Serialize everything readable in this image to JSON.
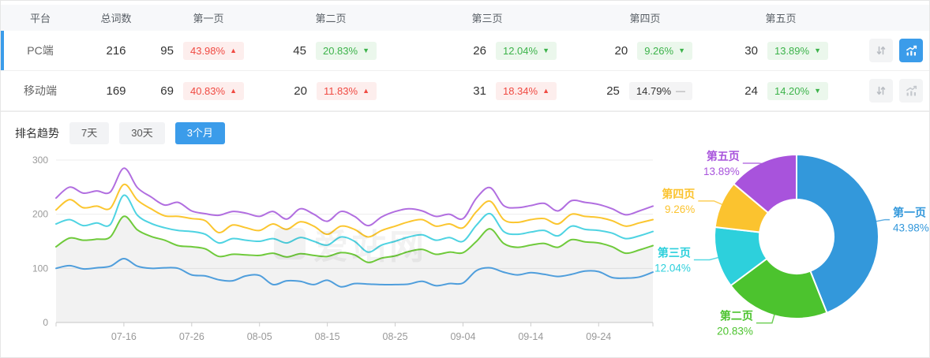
{
  "table": {
    "columns": [
      "平台",
      "总词数",
      "第一页",
      "第二页",
      "第三页",
      "第四页",
      "第五页"
    ],
    "action_icons": {
      "sort": "sort-arrows-icon",
      "trend": "trend-chart-icon"
    },
    "rows": [
      {
        "platform": "PC端",
        "total": "216",
        "selected": true,
        "trend_active": true,
        "pages": [
          {
            "count": "95",
            "pct": "43.98%",
            "dir": "up",
            "tone": "red"
          },
          {
            "count": "45",
            "pct": "20.83%",
            "dir": "down",
            "tone": "green"
          },
          {
            "count": "26",
            "pct": "12.04%",
            "dir": "down",
            "tone": "green"
          },
          {
            "count": "20",
            "pct": "9.26%",
            "dir": "down",
            "tone": "green"
          },
          {
            "count": "30",
            "pct": "13.89%",
            "dir": "down",
            "tone": "green"
          }
        ]
      },
      {
        "platform": "移动端",
        "total": "169",
        "selected": false,
        "trend_active": false,
        "pages": [
          {
            "count": "69",
            "pct": "40.83%",
            "dir": "up",
            "tone": "red"
          },
          {
            "count": "20",
            "pct": "11.83%",
            "dir": "up",
            "tone": "red"
          },
          {
            "count": "31",
            "pct": "18.34%",
            "dir": "up",
            "tone": "red"
          },
          {
            "count": "25",
            "pct": "14.79%",
            "dir": "flat",
            "tone": "gray"
          },
          {
            "count": "24",
            "pct": "14.20%",
            "dir": "down",
            "tone": "green"
          }
        ]
      }
    ]
  },
  "trend": {
    "title": "排名趋势",
    "tabs": [
      {
        "label": "7天",
        "active": false
      },
      {
        "label": "30天",
        "active": false
      },
      {
        "label": "3个月",
        "active": true
      }
    ]
  },
  "watermark": "爱站网",
  "colors": {
    "accent": "#3b9cea",
    "badge_red_text": "#f04a42",
    "badge_red_bg": "#fdeeed",
    "badge_green_text": "#3cb34a",
    "badge_green_bg": "#ebf7ec",
    "badge_gray_bg": "#f4f4f5",
    "axis_text": "#999999",
    "grid_line": "#ededed",
    "axis_line": "#cccccc"
  },
  "chart_data": [
    {
      "type": "line",
      "title": "排名趋势 3个月 (PC端, 页面排名词数累计)",
      "stacked_cumulative": true,
      "x_start": "07-06",
      "x_interval_days": 2,
      "points": 45,
      "x_tick_labels": [
        "07-16",
        "07-26",
        "08-05",
        "08-15",
        "08-25",
        "09-04",
        "09-14",
        "09-24"
      ],
      "x_tick_indices": [
        5,
        10,
        15,
        20,
        25,
        30,
        35,
        40
      ],
      "ylim": [
        0,
        300
      ],
      "y_ticks": [
        0,
        100,
        200,
        300
      ],
      "grid": true,
      "legend": false,
      "area_fill": "rgba(0,0,0,0.05)",
      "series": [
        {
          "name": "第一页",
          "color": "#54a7e8",
          "values": [
            100,
            105,
            99,
            101,
            104,
            118,
            104,
            100,
            101,
            100,
            88,
            86,
            79,
            77,
            86,
            87,
            70,
            77,
            76,
            70,
            78,
            66,
            72,
            71,
            70,
            70,
            71,
            76,
            68,
            72,
            73,
            96,
            101,
            93,
            88,
            92,
            89,
            85,
            89,
            95,
            94,
            83,
            82,
            84,
            93
          ]
        },
        {
          "name": "第二页",
          "color": "#6fca3b",
          "area": true,
          "values": [
            140,
            156,
            152,
            154,
            158,
            196,
            171,
            159,
            152,
            142,
            140,
            136,
            122,
            126,
            125,
            124,
            128,
            121,
            127,
            124,
            122,
            129,
            125,
            111,
            119,
            123,
            131,
            135,
            126,
            130,
            129,
            150,
            173,
            146,
            139,
            143,
            146,
            139,
            153,
            149,
            147,
            140,
            128,
            134,
            142
          ]
        },
        {
          "name": "第三页",
          "color": "#4ed3e2",
          "values": [
            182,
            190,
            179,
            184,
            181,
            235,
            198,
            183,
            175,
            170,
            168,
            163,
            147,
            155,
            152,
            150,
            155,
            147,
            157,
            150,
            143,
            158,
            150,
            130,
            143,
            150,
            158,
            162,
            152,
            157,
            150,
            180,
            201,
            168,
            163,
            167,
            170,
            160,
            178,
            172,
            170,
            165,
            155,
            160,
            168
          ]
        },
        {
          "name": "第四页",
          "color": "#fbc62f",
          "values": [
            208,
            227,
            212,
            215,
            211,
            255,
            226,
            210,
            197,
            196,
            192,
            188,
            166,
            180,
            175,
            170,
            182,
            172,
            186,
            178,
            163,
            178,
            172,
            158,
            170,
            178,
            186,
            190,
            178,
            182,
            175,
            205,
            224,
            190,
            185,
            190,
            192,
            182,
            200,
            196,
            194,
            188,
            178,
            184,
            190
          ]
        },
        {
          "name": "第五页",
          "color": "#b16ee0",
          "values": [
            230,
            250,
            239,
            243,
            241,
            285,
            249,
            232,
            217,
            222,
            206,
            201,
            198,
            205,
            202,
            196,
            205,
            191,
            210,
            200,
            187,
            205,
            196,
            179,
            195,
            205,
            210,
            206,
            196,
            200,
            192,
            230,
            249,
            216,
            212,
            216,
            220,
            206,
            225,
            222,
            218,
            210,
            199,
            206,
            215
          ]
        }
      ]
    },
    {
      "type": "pie",
      "donut": true,
      "title": "PC端 页面分布",
      "slices": [
        {
          "label": "第一页",
          "value": 43.98,
          "display": "43.98%",
          "color": "#3398db"
        },
        {
          "label": "第二页",
          "value": 20.83,
          "display": "20.83%",
          "color": "#4cc32e"
        },
        {
          "label": "第三页",
          "value": 12.04,
          "display": "12.04%",
          "color": "#2dd0dc"
        },
        {
          "label": "第四页",
          "value": 9.26,
          "display": "9.26%",
          "color": "#fbc32f"
        },
        {
          "label": "第五页",
          "value": 13.89,
          "display": "13.89%",
          "color": "#a853dc"
        }
      ]
    }
  ]
}
